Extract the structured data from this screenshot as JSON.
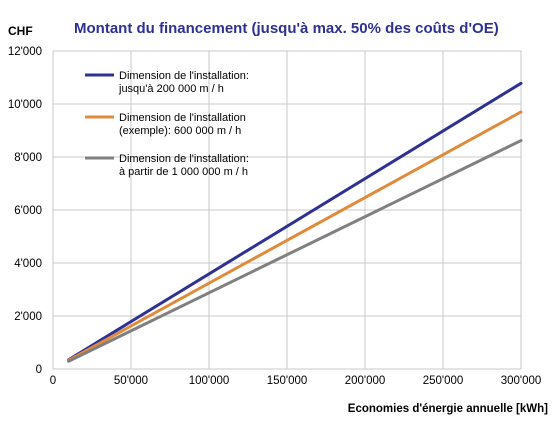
{
  "chart_data": {
    "type": "line",
    "title": "Montant du financement (jusqu'à max. 50% des coûts d'OE)",
    "ylabel": "CHF",
    "xlabel": "Economies d'énergie annuelle [kWh]",
    "xlim": [
      0,
      300000
    ],
    "ylim": [
      0,
      12000
    ],
    "x_ticks": [
      "0",
      "50'000",
      "100'000",
      "150'000",
      "200'000",
      "250'000",
      "300'000"
    ],
    "y_ticks": [
      "0",
      "2'000",
      "4'000",
      "6'000",
      "8'000",
      "10'000",
      "12'000"
    ],
    "grid": true,
    "legend_position": "top-left",
    "x": [
      10000,
      300000
    ],
    "series": [
      {
        "name_lines": [
          "Dimension de l'installation:",
          "jusqu'à 200 000 m  / h"
        ],
        "color": "#2e3192",
        "values": [
          350,
          10780
        ]
      },
      {
        "name_lines": [
          "Dimension de l'installation",
          "(exemple): 600 000 m  / h"
        ],
        "color": "#e08a3c",
        "values": [
          330,
          9700
        ]
      },
      {
        "name_lines": [
          "Dimension de l'installation:",
          "à partir de 1 000 000 m  / h"
        ],
        "color": "#808080",
        "values": [
          290,
          8620
        ]
      }
    ]
  }
}
